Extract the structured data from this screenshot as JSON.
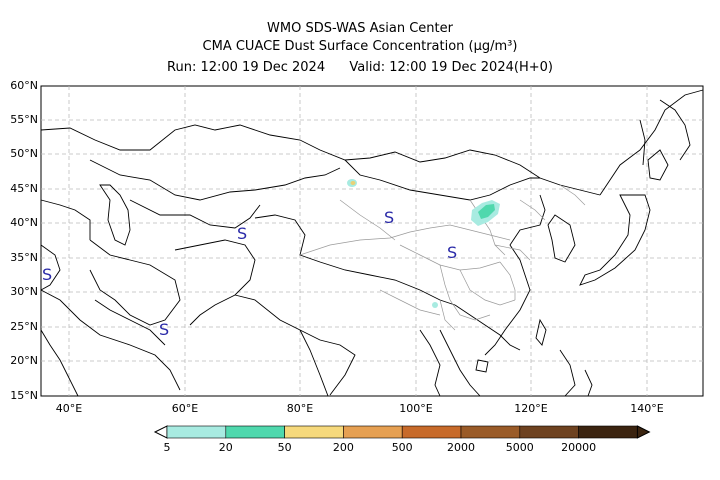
{
  "header": {
    "title": "WMO SDS-WAS Asian Center",
    "subtitle": "CMA CUACE Dust Surface Concentration (μg/m³)",
    "run_label": "Run: 12:00 19 Dec 2024",
    "valid_label": "Valid: 12:00 19 Dec 2024(H+0)"
  },
  "map": {
    "lat_labels": [
      "60°N",
      "55°N",
      "50°N",
      "45°N",
      "40°N",
      "35°N",
      "30°N",
      "25°N",
      "20°N",
      "15°N"
    ],
    "lon_labels": [
      "40°E",
      "60°E",
      "80°E",
      "100°E",
      "120°E",
      "140°E"
    ],
    "markers": [
      "S",
      "S",
      "S",
      "S",
      "S"
    ],
    "grid": "on"
  },
  "legend": {
    "ticks": [
      "5",
      "20",
      "50",
      "200",
      "500",
      "2000",
      "5000",
      "20000"
    ],
    "colors": [
      "#a8ebe1",
      "#4fd8ad",
      "#f6d97c",
      "#e6a052",
      "#c76a2a",
      "#9a5b28",
      "#6e4220",
      "#3b2410"
    ]
  }
}
